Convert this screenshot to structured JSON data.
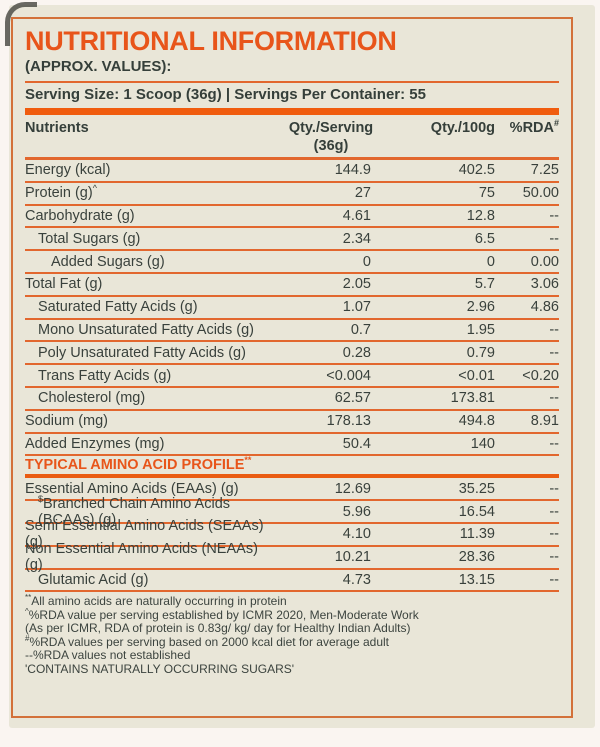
{
  "colors": {
    "accent_orange": "#E8551A",
    "bar_orange": "#F05C0E",
    "line_orange": "#E2672E",
    "border_orange": "#D3713A",
    "text_dark": "#39413C",
    "bg_beige": "#E9E6D8",
    "outer_bg": "#FAF5F1"
  },
  "header": {
    "title": "NUTRITIONAL INFORMATION",
    "subtitle": "(APPROX. VALUES):",
    "serving_line": "Serving Size: 1 Scoop (36g) | Servings Per Container: 55"
  },
  "table": {
    "headers": {
      "nutrients": "Nutrients",
      "qty_serving_line1": "Qty./Serving",
      "qty_serving_line2": "(36g)",
      "qty_100g": "Qty./100g",
      "rda": "%RDA",
      "rda_sup": "#"
    },
    "rows": [
      {
        "type": "row",
        "label": "Energy (kcal)",
        "sup_pre": "",
        "sup_post": "",
        "indent": 0,
        "qty_serving": "144.9",
        "qty_100g": "402.5",
        "rda": "7.25"
      },
      {
        "type": "row",
        "label": "Protein (g)",
        "sup_pre": "",
        "sup_post": "^",
        "indent": 0,
        "qty_serving": "27",
        "qty_100g": "75",
        "rda": "50.00"
      },
      {
        "type": "row",
        "label": "Carbohydrate (g)",
        "sup_pre": "",
        "sup_post": "",
        "indent": 0,
        "qty_serving": "4.61",
        "qty_100g": "12.8",
        "rda": "--"
      },
      {
        "type": "row",
        "label": "Total Sugars (g)",
        "sup_pre": "",
        "sup_post": "",
        "indent": 1,
        "qty_serving": "2.34",
        "qty_100g": "6.5",
        "rda": "--"
      },
      {
        "type": "row",
        "label": "Added Sugars (g)",
        "sup_pre": "",
        "sup_post": "",
        "indent": 2,
        "qty_serving": "0",
        "qty_100g": "0",
        "rda": "0.00"
      },
      {
        "type": "row",
        "label": "Total Fat (g)",
        "sup_pre": "",
        "sup_post": "",
        "indent": 0,
        "qty_serving": "2.05",
        "qty_100g": "5.7",
        "rda": "3.06"
      },
      {
        "type": "row",
        "label": "Saturated Fatty Acids (g)",
        "sup_pre": "",
        "sup_post": "",
        "indent": 1,
        "qty_serving": "1.07",
        "qty_100g": "2.96",
        "rda": "4.86"
      },
      {
        "type": "row",
        "label": "Mono Unsaturated Fatty Acids (g)",
        "sup_pre": "",
        "sup_post": "",
        "indent": 1,
        "qty_serving": "0.7",
        "qty_100g": "1.95",
        "rda": "--"
      },
      {
        "type": "row",
        "label": "Poly Unsaturated Fatty Acids (g)",
        "sup_pre": "",
        "sup_post": "",
        "indent": 1,
        "qty_serving": "0.28",
        "qty_100g": "0.79",
        "rda": "--"
      },
      {
        "type": "row",
        "label": "Trans Fatty Acids (g)",
        "sup_pre": "",
        "sup_post": "",
        "indent": 1,
        "qty_serving": "<0.004",
        "qty_100g": "<0.01",
        "rda": "<0.20"
      },
      {
        "type": "row",
        "label": "Cholesterol (mg)",
        "sup_pre": "",
        "sup_post": "",
        "indent": 1,
        "qty_serving": "62.57",
        "qty_100g": "173.81",
        "rda": "--"
      },
      {
        "type": "row",
        "label": "Sodium (mg)",
        "sup_pre": "",
        "sup_post": "",
        "indent": 0,
        "qty_serving": "178.13",
        "qty_100g": "494.8",
        "rda": "8.91"
      },
      {
        "type": "row",
        "label": "Added Enzymes (mg)",
        "sup_pre": "",
        "sup_post": "",
        "indent": 0,
        "qty_serving": "50.4",
        "qty_100g": "140",
        "rda": "--"
      },
      {
        "type": "section",
        "label": "TYPICAL AMINO ACID PROFILE",
        "sup_pre": "",
        "sup_post": "**"
      },
      {
        "type": "row",
        "label": "Essential Amino Acids (EAAs) (g)",
        "sup_pre": "",
        "sup_post": "",
        "indent": 0,
        "qty_serving": "12.69",
        "qty_100g": "35.25",
        "rda": "--"
      },
      {
        "type": "row",
        "label": "Branched Chain Amino Acids (BCAAs) (g)",
        "sup_pre": "$",
        "sup_post": "",
        "indent": 1,
        "qty_serving": "5.96",
        "qty_100g": "16.54",
        "rda": "--"
      },
      {
        "type": "row",
        "label": "Semi Essential Amino Acids (SEAAs) (g)",
        "sup_pre": "",
        "sup_post": "",
        "indent": 0,
        "qty_serving": "4.10",
        "qty_100g": "11.39",
        "rda": "--"
      },
      {
        "type": "row",
        "label": "Non Essential Amino Acids (NEAAs) (g)",
        "sup_pre": "",
        "sup_post": "",
        "indent": 0,
        "qty_serving": "10.21",
        "qty_100g": "28.36",
        "rda": "--"
      },
      {
        "type": "row",
        "label": "Glutamic Acid (g)",
        "sup_pre": "",
        "sup_post": "",
        "indent": 1,
        "qty_serving": "4.73",
        "qty_100g": "13.15",
        "rda": "--"
      }
    ]
  },
  "footnotes": [
    {
      "sup": "**",
      "text": "All amino acids are naturally occurring in protein"
    },
    {
      "sup": "^",
      "text": "%RDA value per serving established by ICMR 2020, Men-Moderate Work"
    },
    {
      "sup": "",
      "text": "(As per ICMR, RDA of protein is 0.83g/ kg/ day for Healthy Indian Adults)"
    },
    {
      "sup": "#",
      "text": "%RDA values per serving based on 2000 kcal diet for average adult"
    },
    {
      "sup": "",
      "text": "--%RDA values not established"
    },
    {
      "sup": "",
      "text": "'CONTAINS NATURALLY OCCURRING SUGARS'"
    }
  ]
}
